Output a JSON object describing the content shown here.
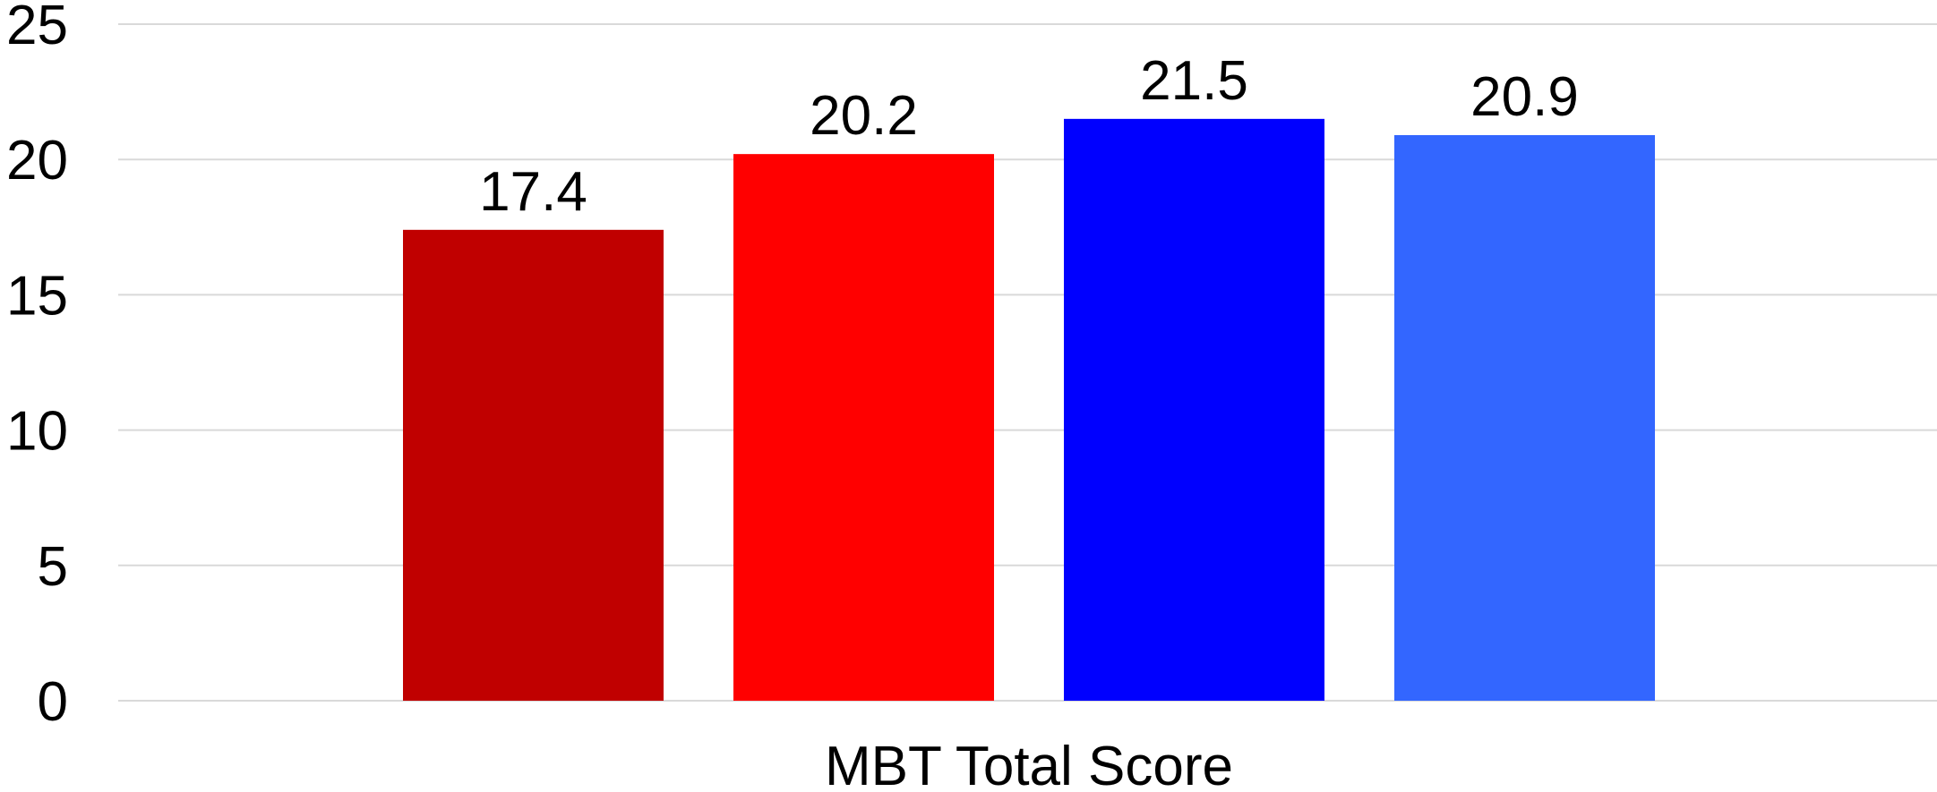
{
  "chart_data": {
    "type": "bar",
    "categories": [
      "MBT Total Score"
    ],
    "series": [
      {
        "values": [
          17.4
        ],
        "color": "#c00000"
      },
      {
        "values": [
          20.2
        ],
        "color": "#ff0000"
      },
      {
        "values": [
          21.5
        ],
        "color": "#0000ff"
      },
      {
        "values": [
          20.9
        ],
        "color": "#3366ff"
      }
    ],
    "data_labels": [
      "17.4",
      "20.2",
      "21.5",
      "20.9"
    ],
    "ylim": [
      0,
      25
    ],
    "yticks": [
      "0",
      "5",
      "10",
      "15",
      "20",
      "25"
    ],
    "grid": true,
    "legend": "none",
    "title": "",
    "xlabel": "",
    "ylabel": ""
  }
}
